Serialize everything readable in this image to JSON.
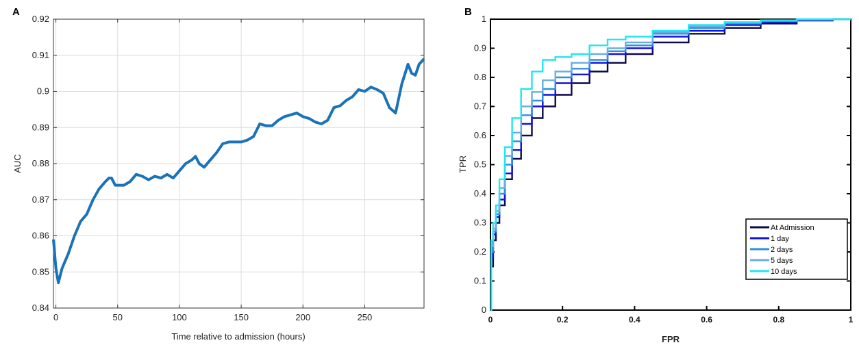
{
  "colors": {
    "curveA": "#1a72b8",
    "grid": "#dcdcdc",
    "axis": "#333333"
  },
  "chart_data": [
    {
      "panel": "A",
      "type": "line",
      "xlabel": "Time relative to admission (hours)",
      "ylabel": "AUC",
      "xlim": [
        -2,
        298
      ],
      "ylim": [
        0.84,
        0.92
      ],
      "xticks": [
        0,
        50,
        100,
        150,
        200,
        250
      ],
      "xtick_labels": [
        "0",
        "50",
        "100",
        "150",
        "200",
        "250"
      ],
      "yticks": [
        0.84,
        0.85,
        0.86,
        0.87,
        0.88,
        0.89,
        0.9,
        0.91,
        0.92
      ],
      "ytick_labels": [
        "0.84",
        "0.85",
        "0.86",
        "0.87",
        "0.88",
        "0.89",
        "0.9",
        "0.91",
        "0.92"
      ],
      "grid": true,
      "series": [
        {
          "color": "#1a72b8",
          "x": [
            -2,
            0,
            2,
            5,
            10,
            15,
            20,
            25,
            30,
            35,
            40,
            43,
            45,
            48,
            50,
            55,
            60,
            65,
            70,
            75,
            80,
            85,
            90,
            95,
            100,
            105,
            110,
            113,
            116,
            120,
            125,
            130,
            135,
            140,
            145,
            150,
            155,
            160,
            165,
            170,
            175,
            180,
            185,
            190,
            195,
            200,
            205,
            210,
            215,
            220,
            225,
            230,
            235,
            240,
            245,
            250,
            255,
            260,
            265,
            270,
            275,
            280,
            285,
            288,
            291,
            294,
            298
          ],
          "y": [
            0.859,
            0.851,
            0.847,
            0.851,
            0.855,
            0.86,
            0.864,
            0.866,
            0.87,
            0.873,
            0.875,
            0.876,
            0.876,
            0.874,
            0.874,
            0.874,
            0.875,
            0.877,
            0.8765,
            0.8755,
            0.8765,
            0.876,
            0.877,
            0.876,
            0.878,
            0.88,
            0.881,
            0.882,
            0.88,
            0.879,
            0.881,
            0.883,
            0.8855,
            0.886,
            0.886,
            0.886,
            0.8865,
            0.8875,
            0.891,
            0.8905,
            0.8905,
            0.892,
            0.893,
            0.8935,
            0.894,
            0.893,
            0.8925,
            0.8915,
            0.891,
            0.892,
            0.8955,
            0.896,
            0.8975,
            0.8985,
            0.9005,
            0.9,
            0.9012,
            0.9005,
            0.8995,
            0.8955,
            0.894,
            0.902,
            0.9075,
            0.905,
            0.9045,
            0.9075,
            0.909
          ]
        }
      ]
    },
    {
      "panel": "B",
      "type": "line",
      "xlabel": "FPR",
      "ylabel": "TPR",
      "xlim": [
        0,
        1
      ],
      "ylim": [
        0,
        1
      ],
      "xticks": [
        0,
        0.2,
        0.4,
        0.6,
        0.8,
        1
      ],
      "xtick_labels": [
        "0",
        "0.2",
        "0.4",
        "0.6",
        "0.8",
        "1"
      ],
      "yticks": [
        0,
        0.1,
        0.2,
        0.3,
        0.4,
        0.5,
        0.6,
        0.7,
        0.8,
        0.9,
        1
      ],
      "ytick_labels": [
        "0",
        "0.1",
        "0.2",
        "0.3",
        "0.4",
        "0.5",
        "0.6",
        "0.7",
        "0.8",
        "0.9",
        "1"
      ],
      "grid": false,
      "legend_position": "bottom-right",
      "series": [
        {
          "name": "At Admission",
          "color": "#0a0a4a",
          "x": [
            0,
            0.005,
            0.01,
            0.02,
            0.03,
            0.05,
            0.07,
            0.1,
            0.13,
            0.16,
            0.2,
            0.25,
            0.3,
            0.35,
            0.4,
            0.5,
            0.6,
            0.7,
            0.8,
            0.9,
            1.0
          ],
          "y": [
            0,
            0.15,
            0.24,
            0.3,
            0.36,
            0.45,
            0.52,
            0.6,
            0.66,
            0.7,
            0.74,
            0.78,
            0.82,
            0.85,
            0.88,
            0.92,
            0.95,
            0.97,
            0.985,
            0.995,
            1.0
          ]
        },
        {
          "name": "1 day",
          "color": "#1212e0",
          "x": [
            0,
            0.005,
            0.01,
            0.02,
            0.03,
            0.05,
            0.07,
            0.1,
            0.13,
            0.16,
            0.2,
            0.25,
            0.3,
            0.35,
            0.4,
            0.5,
            0.6,
            0.7,
            0.8,
            0.9,
            1.0
          ],
          "y": [
            0,
            0.18,
            0.26,
            0.32,
            0.38,
            0.47,
            0.55,
            0.64,
            0.7,
            0.74,
            0.78,
            0.81,
            0.85,
            0.88,
            0.9,
            0.94,
            0.96,
            0.98,
            0.99,
            0.997,
            1.0
          ]
        },
        {
          "name": "2 days",
          "color": "#2f8fe0",
          "x": [
            0,
            0.005,
            0.01,
            0.02,
            0.03,
            0.05,
            0.07,
            0.1,
            0.13,
            0.16,
            0.2,
            0.25,
            0.3,
            0.35,
            0.4,
            0.5,
            0.6,
            0.7,
            0.8,
            0.9,
            1.0
          ],
          "y": [
            0,
            0.2,
            0.27,
            0.33,
            0.4,
            0.5,
            0.58,
            0.67,
            0.72,
            0.76,
            0.8,
            0.83,
            0.86,
            0.89,
            0.91,
            0.95,
            0.97,
            0.985,
            0.993,
            0.998,
            1.0
          ]
        },
        {
          "name": "5 days",
          "color": "#6aaee0",
          "x": [
            0,
            0.005,
            0.01,
            0.02,
            0.03,
            0.05,
            0.07,
            0.1,
            0.13,
            0.16,
            0.2,
            0.25,
            0.3,
            0.35,
            0.4,
            0.5,
            0.6,
            0.7,
            0.8,
            0.9,
            1.0
          ],
          "y": [
            0,
            0.22,
            0.28,
            0.34,
            0.42,
            0.53,
            0.61,
            0.7,
            0.75,
            0.79,
            0.82,
            0.85,
            0.88,
            0.9,
            0.92,
            0.955,
            0.975,
            0.988,
            0.995,
            0.999,
            1.0
          ]
        },
        {
          "name": "10 days",
          "color": "#22e6f0",
          "x": [
            0,
            0.005,
            0.01,
            0.02,
            0.03,
            0.05,
            0.07,
            0.1,
            0.13,
            0.16,
            0.2,
            0.25,
            0.3,
            0.35,
            0.4,
            0.5,
            0.6,
            0.7,
            0.8,
            0.9,
            1.0
          ],
          "y": [
            0,
            0.24,
            0.3,
            0.36,
            0.45,
            0.56,
            0.66,
            0.76,
            0.82,
            0.86,
            0.87,
            0.88,
            0.91,
            0.93,
            0.94,
            0.96,
            0.98,
            0.99,
            0.996,
            1.0,
            1.0
          ]
        }
      ]
    }
  ]
}
